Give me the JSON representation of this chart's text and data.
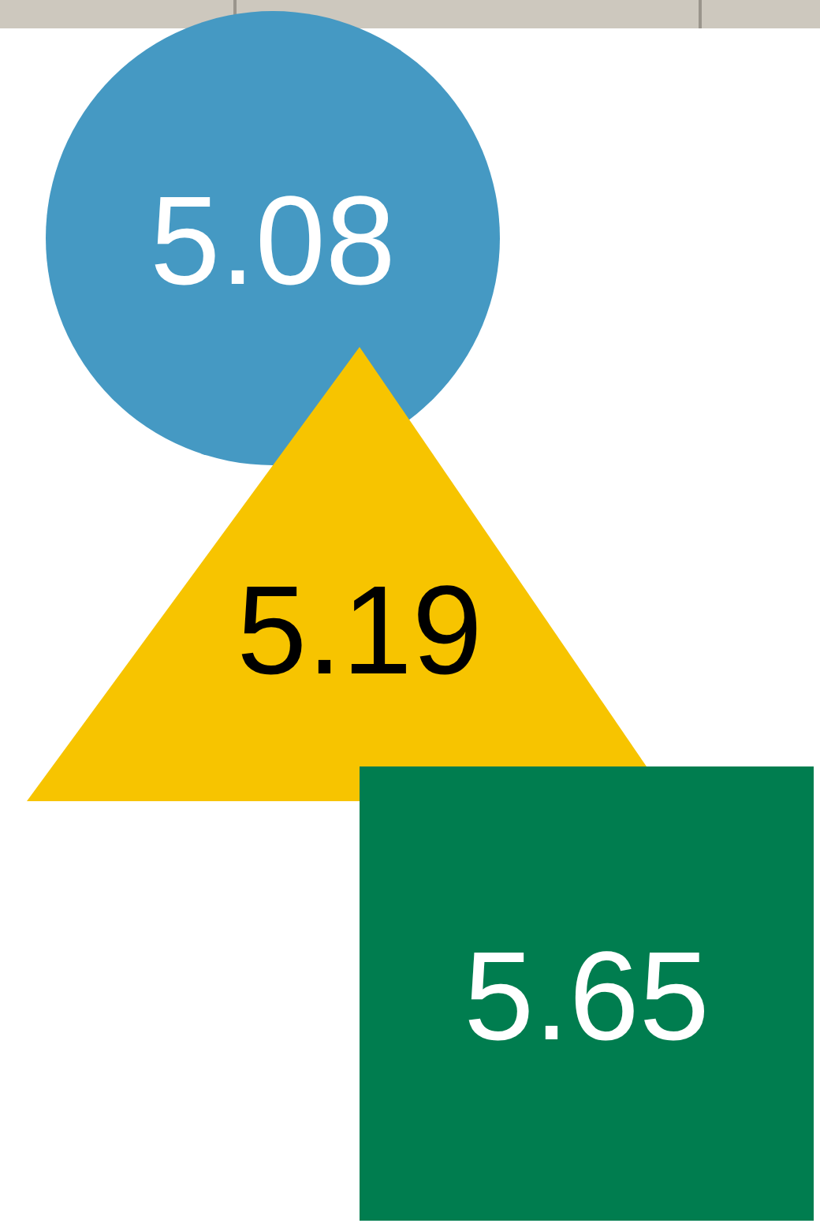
{
  "chart_data": {
    "type": "other",
    "data_labels": true,
    "categories": [
      null,
      null,
      null
    ],
    "values": [
      5.08,
      5.19,
      5.65
    ],
    "colors": [
      "#4599c3",
      "#f7c400",
      "#007d4f"
    ]
  }
}
